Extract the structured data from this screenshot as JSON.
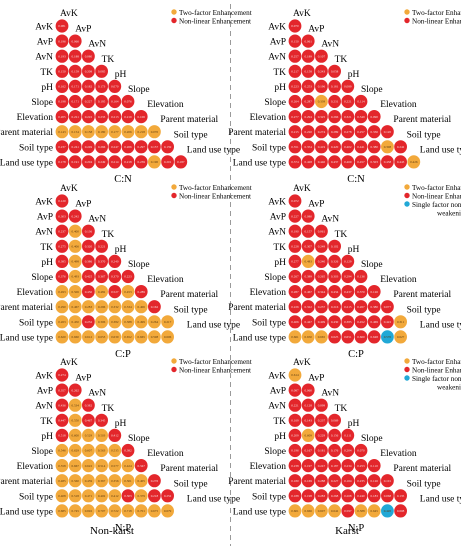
{
  "colors": {
    "two_factor": "#f2a93b",
    "non_linear": "#e3262b",
    "single_weaken": "#21a8d6",
    "divider": "#9a9a9a"
  },
  "chart_data": {
    "type": "heatmap",
    "title": "",
    "factors": [
      "AvK",
      "AvP",
      "AvN",
      "TK",
      "pH",
      "Slope",
      "Elevation",
      "Parent material",
      "Soil type",
      "Land use type"
    ],
    "legend_labels": {
      "two_factor": "Two-factor Enhancement",
      "non_linear": "Non-linear Enhancement",
      "single_weaken": "Single factor non-linear weakening"
    },
    "columns": [
      "Non-karst",
      "Karst"
    ],
    "panels": [
      {
        "label": "C:N",
        "col": 0,
        "row": 0,
        "legend": [
          "two_factor",
          "non_linear"
        ],
        "cells": [
          [
            "0.081"
          ],
          [
            "0.196",
            "0.066"
          ],
          [
            "0.193",
            "0.188",
            "0.080"
          ],
          [
            "0.150",
            "0.159",
            "0.208",
            "0.085"
          ],
          [
            "0.162",
            "0.171",
            "0.182",
            "0.173",
            "0.070"
          ],
          [
            "0.198",
            "0.171",
            "0.227",
            "0.195",
            "0.164",
            "0.076"
          ],
          [
            "0.205",
            "0.221",
            "0.222",
            "0.233",
            "0.213",
            "0.219",
            "0.106"
          ],
          [
            "0.143",
            "0.154",
            "0.158",
            "0.180",
            "0.177",
            "0.206",
            "0.218",
            "0.070"
          ],
          [
            "0.237",
            "0.241",
            "0.249",
            "0.266",
            "0.247",
            "0.266",
            "0.297",
            "0.157",
            "0.159"
          ],
          [
            "0.178",
            "0.191",
            "0.204",
            "0.249",
            "0.214",
            "0.218",
            "0.239",
            "0.190",
            "0.201",
            "0.187"
          ]
        ],
        "types": [
          [
            "N"
          ],
          [
            "N",
            "N"
          ],
          [
            "N",
            "N",
            "N"
          ],
          [
            "N",
            "N",
            "N",
            "N"
          ],
          [
            "N",
            "N",
            "N",
            "N",
            "N"
          ],
          [
            "N",
            "N",
            "N",
            "N",
            "N",
            "N"
          ],
          [
            "N",
            "N",
            "N",
            "N",
            "N",
            "N",
            "N"
          ],
          [
            "T",
            "T",
            "T",
            "T",
            "T",
            "T",
            "T",
            "T"
          ],
          [
            "N",
            "N",
            "N",
            "N",
            "N",
            "N",
            "N",
            "N",
            "N"
          ],
          [
            "N",
            "N",
            "N",
            "N",
            "N",
            "N",
            "N",
            "T",
            "N",
            "N"
          ]
        ]
      },
      {
        "label": "C:N",
        "col": 1,
        "row": 0,
        "legend": [
          "two_factor",
          "non_linear"
        ],
        "cells": [
          [
            "0.070"
          ],
          [
            "0.150",
            "0.061"
          ],
          [
            "0.257",
            "0.189",
            "0.107"
          ],
          [
            "0.217",
            "0.158",
            "0.243",
            "0.058"
          ],
          [
            "0.223",
            "0.253",
            "0.196",
            "0.181",
            "0.089"
          ],
          [
            "0.264",
            "0.287",
            "0.339",
            "0.231",
            "0.221",
            "0.114"
          ],
          [
            "0.277",
            "0.294",
            "0.325",
            "0.266",
            "0.321",
            "0.349",
            "0.090"
          ],
          [
            "0.215",
            "0.220",
            "0.274",
            "0.289",
            "0.278",
            "0.257",
            "0.336",
            "0.120"
          ],
          [
            "0.351",
            "0.354",
            "0.419",
            "0.420",
            "0.402",
            "0.441",
            "0.380",
            "0.308",
            "0.242"
          ],
          [
            "0.374",
            "0.428",
            "0.440",
            "0.437",
            "0.469",
            "0.457",
            "0.503",
            "0.438",
            "0.443",
            "0.426"
          ]
        ],
        "types": [
          [
            "N"
          ],
          [
            "N",
            "N"
          ],
          [
            "N",
            "N",
            "N"
          ],
          [
            "N",
            "N",
            "N",
            "N"
          ],
          [
            "N",
            "N",
            "N",
            "N",
            "N"
          ],
          [
            "N",
            "N",
            "T",
            "N",
            "N",
            "N"
          ],
          [
            "N",
            "N",
            "N",
            "N",
            "N",
            "N",
            "N"
          ],
          [
            "N",
            "N",
            "N",
            "N",
            "N",
            "N",
            "N",
            "N"
          ],
          [
            "N",
            "N",
            "N",
            "N",
            "N",
            "N",
            "N",
            "T",
            "N"
          ],
          [
            "N",
            "N",
            "N",
            "N",
            "N",
            "N",
            "N",
            "N",
            "N",
            "T"
          ]
        ]
      },
      {
        "label": "C:P",
        "col": 0,
        "row": 1,
        "legend": [
          "two_factor",
          "non_linear"
        ],
        "cells": [
          [
            "0.120"
          ],
          [
            "0.303",
            "0.242"
          ],
          [
            "0.237",
            "0.400",
            "0.136"
          ],
          [
            "0.275",
            "0.406",
            "0.320",
            "0.221"
          ],
          [
            "0.385",
            "0.498",
            "0.386",
            "0.370",
            "0.240"
          ],
          [
            "0.376",
            "0.493",
            "0.425",
            "0.367",
            "0.370",
            "0.223"
          ],
          [
            "0.493",
            "0.506",
            "0.450",
            "0.482",
            "0.527",
            "0.453",
            "0.289"
          ],
          [
            "0.290",
            "0.467",
            "0.283",
            "0.296",
            "0.332",
            "0.334",
            "0.406",
            "0.162"
          ],
          [
            "0.263",
            "0.450",
            "0.232",
            "0.306",
            "0.382",
            "0.388",
            "0.499",
            "0.264",
            "0.217"
          ],
          [
            "0.620",
            "0.660",
            "0.612",
            "0.653",
            "0.639",
            "0.652",
            "0.665",
            "0.598",
            "0.606"
          ]
        ],
        "types": [
          [
            "N"
          ],
          [
            "N",
            "N"
          ],
          [
            "N",
            "T",
            "N"
          ],
          [
            "N",
            "T",
            "N",
            "N"
          ],
          [
            "N",
            "T",
            "N",
            "N",
            "N"
          ],
          [
            "N",
            "T",
            "N",
            "N",
            "N",
            "N"
          ],
          [
            "T",
            "T",
            "N",
            "T",
            "N",
            "T",
            "N"
          ],
          [
            "T",
            "T",
            "T",
            "T",
            "T",
            "T",
            "T",
            "N"
          ],
          [
            "T",
            "T",
            "N",
            "T",
            "T",
            "T",
            "T",
            "T",
            "T"
          ],
          [
            "T",
            "T",
            "T",
            "T",
            "T",
            "T",
            "T",
            "T",
            "T"
          ]
        ]
      },
      {
        "label": "C:P",
        "col": 1,
        "row": 1,
        "legend": [
          "two_factor",
          "non_linear",
          "single_weaken"
        ],
        "cells": [
          [
            "0.072"
          ],
          [
            "0.227",
            "0.080"
          ],
          [
            "0.190",
            "0.157",
            "0.061"
          ],
          [
            "0.228",
            "0.307",
            "0.249",
            "0.102"
          ],
          [
            "0.277",
            "0.483",
            "0.240",
            "0.326",
            "0.129"
          ],
          [
            "0.267",
            "0.389",
            "0.265",
            "0.303",
            "0.294",
            "0.136"
          ],
          [
            "0.287",
            "0.467",
            "0.344",
            "0.434",
            "0.437",
            "0.370",
            "0.126"
          ],
          [
            "0.226",
            "0.322",
            "0.237",
            "0.216",
            "0.215",
            "0.267",
            "0.380",
            "0.077"
          ],
          [
            "0.406",
            "0.447",
            "0.409",
            "0.430",
            "0.385",
            "0.452",
            "0.469",
            "0.422",
            "0.311"
          ],
          [
            "0.661",
            "0.650",
            "0.665",
            "0.625",
            "0.651",
            "0.660",
            "0.648",
            "0.570",
            "0.627"
          ]
        ],
        "types": [
          [
            "N"
          ],
          [
            "N",
            "N"
          ],
          [
            "N",
            "N",
            "N"
          ],
          [
            "N",
            "N",
            "N",
            "N"
          ],
          [
            "N",
            "T",
            "N",
            "N",
            "N"
          ],
          [
            "N",
            "N",
            "N",
            "N",
            "N",
            "N"
          ],
          [
            "N",
            "N",
            "N",
            "N",
            "N",
            "N",
            "N"
          ],
          [
            "N",
            "N",
            "N",
            "N",
            "N",
            "N",
            "N",
            "N"
          ],
          [
            "N",
            "N",
            "N",
            "N",
            "N",
            "N",
            "N",
            "N",
            "T"
          ],
          [
            "T",
            "T",
            "T",
            "N",
            "N",
            "N",
            "N",
            "S",
            "T"
          ]
        ]
      },
      {
        "label": "N:P",
        "col": 0,
        "row": 2,
        "legend": [
          "two_factor",
          "non_linear"
        ],
        "cells": [
          [
            "0.274"
          ],
          [
            "0.357",
            "0.262"
          ],
          [
            "0.436",
            "0.534",
            "0.382"
          ],
          [
            "0.447",
            "0.550",
            "0.467",
            "0.345"
          ],
          [
            "0.518",
            "0.600",
            "0.529",
            "0.503",
            "0.412"
          ],
          [
            "0.546",
            "0.629",
            "0.607",
            "0.563",
            "0.535",
            "0.382"
          ],
          [
            "0.558",
            "0.667",
            "0.622",
            "0.514",
            "0.577",
            "0.424",
            "0.347"
          ],
          [
            "0.485",
            "0.560",
            "0.459",
            "0.367",
            "0.356",
            "0.301",
            "0.405",
            "0.276"
          ],
          [
            "0.408",
            "0.518",
            "0.471",
            "0.402",
            "0.412",
            "0.303",
            "0.379",
            "0.218",
            "0.252"
          ],
          [
            "0.685",
            "0.745",
            "0.692",
            "0.707",
            "0.722",
            "0.718",
            "0.701",
            "0.675",
            "0.679"
          ]
        ],
        "types": [
          [
            "N"
          ],
          [
            "N",
            "N"
          ],
          [
            "N",
            "T",
            "N"
          ],
          [
            "N",
            "T",
            "N",
            "N"
          ],
          [
            "N",
            "T",
            "T",
            "T",
            "N"
          ],
          [
            "T",
            "T",
            "T",
            "T",
            "T",
            "N"
          ],
          [
            "T",
            "T",
            "T",
            "T",
            "T",
            "T",
            "N"
          ],
          [
            "T",
            "T",
            "T",
            "T",
            "T",
            "T",
            "T",
            "N"
          ],
          [
            "T",
            "T",
            "T",
            "T",
            "T",
            "N",
            "T",
            "N",
            "N"
          ],
          [
            "T",
            "T",
            "T",
            "T",
            "T",
            "T",
            "T",
            "T",
            "T"
          ]
        ]
      },
      {
        "label": "N:P",
        "col": 1,
        "row": 2,
        "legend": [
          "two_factor",
          "non_linear",
          "single_weaken"
        ],
        "cells": [
          [
            "0.614"
          ],
          [
            "0.087",
            "0.060"
          ],
          [
            "0.221",
            "0.128",
            "0.099"
          ],
          [
            "0.169",
            "0.143",
            "0.237",
            "0.069"
          ],
          [
            "0.209",
            "0.609",
            "0.229",
            "0.156",
            "0.111"
          ],
          [
            "0.196",
            "0.167",
            "0.181",
            "0.176",
            "0.204",
            "0.070"
          ],
          [
            "0.238",
            "0.197",
            "0.247",
            "0.187",
            "0.234",
            "0.253",
            "0.110"
          ],
          [
            "0.180",
            "0.169",
            "0.288",
            "0.227",
            "0.164",
            "0.235",
            "0.126",
            "0.101"
          ],
          [
            "0.188",
            "0.198",
            "0.283",
            "0.268",
            "0.268",
            "0.240",
            "0.183",
            "0.068",
            "0.135"
          ],
          [
            "0.601",
            "0.666",
            "0.607",
            "0.642",
            "0.597",
            "0.588",
            "0.645",
            "0.420",
            "0.608"
          ]
        ],
        "types": [
          [
            "T"
          ],
          [
            "N",
            "N"
          ],
          [
            "N",
            "N",
            "N"
          ],
          [
            "N",
            "N",
            "N",
            "N"
          ],
          [
            "N",
            "T",
            "N",
            "N",
            "N"
          ],
          [
            "N",
            "N",
            "N",
            "N",
            "N",
            "N"
          ],
          [
            "N",
            "N",
            "N",
            "N",
            "N",
            "N",
            "N"
          ],
          [
            "N",
            "N",
            "N",
            "N",
            "N",
            "N",
            "N",
            "N"
          ],
          [
            "N",
            "N",
            "N",
            "N",
            "N",
            "N",
            "N",
            "N",
            "N"
          ],
          [
            "T",
            "T",
            "T",
            "T",
            "N",
            "T",
            "T",
            "S",
            "N"
          ]
        ]
      }
    ]
  }
}
